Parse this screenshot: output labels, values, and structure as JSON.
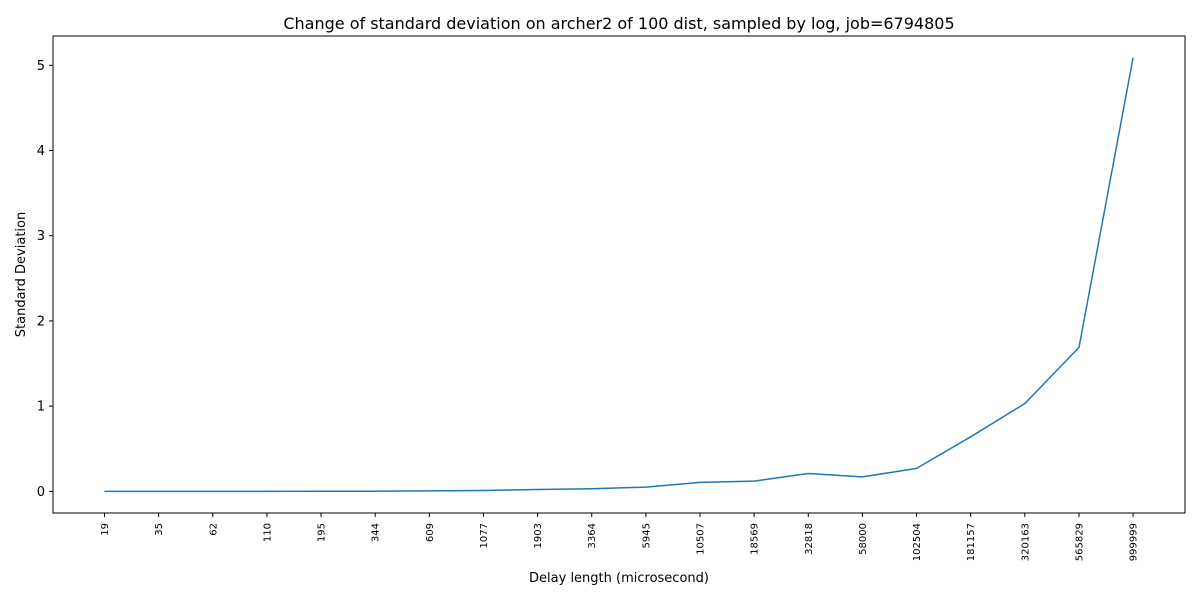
{
  "chart_data": {
    "type": "line",
    "title": "Change of standard deviation on archer2 of 100 dist, sampled by log, job=6794805",
    "xlabel": "Delay length (microsecond)",
    "ylabel": "Standard Deviation",
    "categories": [
      "19",
      "35",
      "62",
      "110",
      "195",
      "344",
      "609",
      "1077",
      "1903",
      "3364",
      "5945",
      "10507",
      "18569",
      "32818",
      "58000",
      "102504",
      "181157",
      "320163",
      "565829",
      "999999"
    ],
    "series": [
      {
        "values": [
          0.0,
          0.0,
          0.0,
          0.0,
          0.001,
          0.002,
          0.005,
          0.01,
          0.022,
          0.03,
          0.05,
          0.105,
          0.12,
          0.21,
          0.17,
          0.27,
          0.64,
          1.03,
          1.69,
          5.09
        ],
        "color": "#1f77b4"
      }
    ],
    "yticks": [
      0,
      1,
      2,
      3,
      4,
      5
    ],
    "ylim": [
      -0.254,
      5.344
    ],
    "grid": false,
    "legend": "none"
  }
}
